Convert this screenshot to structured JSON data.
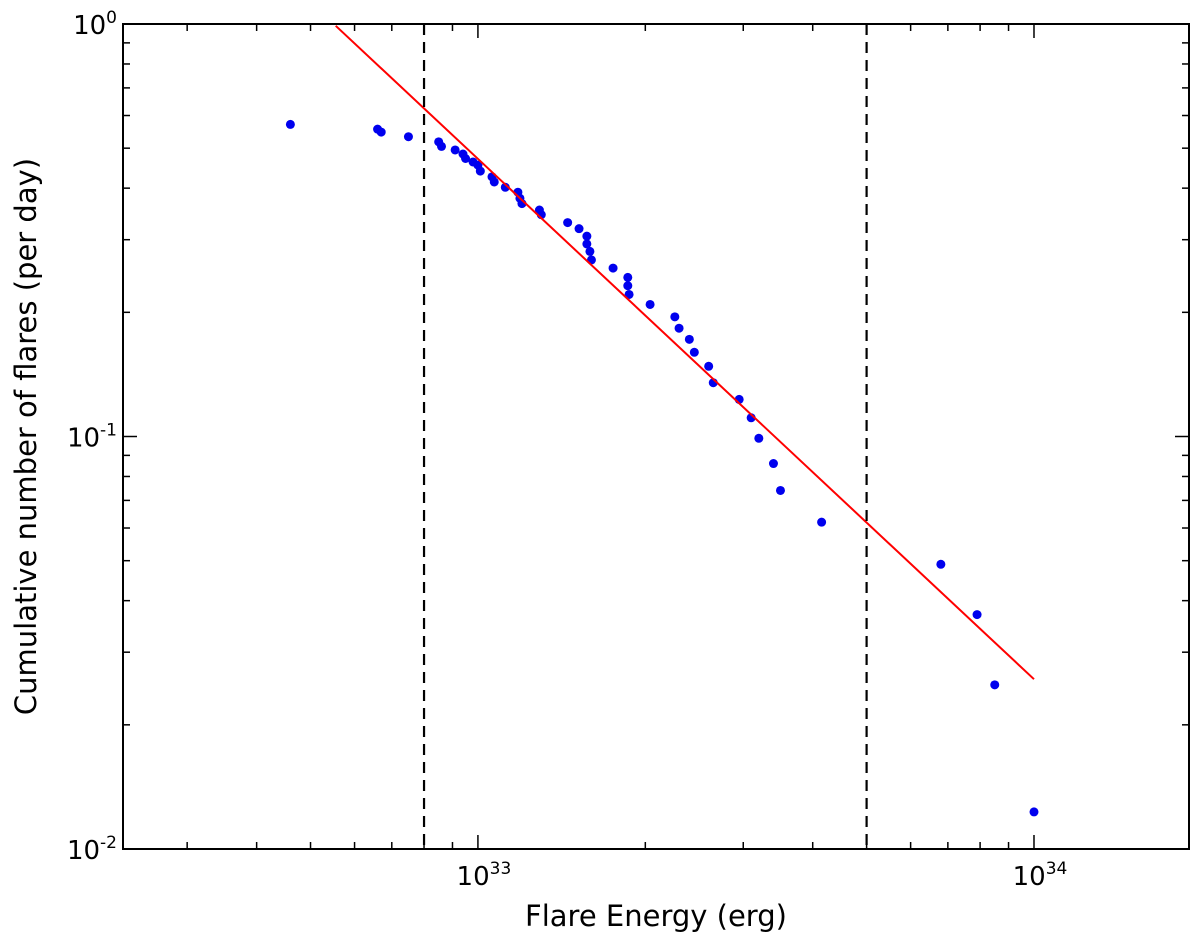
{
  "chart_data": {
    "type": "scatter",
    "title": "",
    "xlabel": "Flare Energy (erg)",
    "ylabel": "Cumulative number of flares (per day)",
    "x_scale": "log",
    "y_scale": "log",
    "xlim": [
      2.3e+32,
      1.9e+34
    ],
    "ylim": [
      0.01,
      1.0
    ],
    "x_ticks": [
      {
        "value": 1e+33,
        "base": "10",
        "exp": "33"
      },
      {
        "value": 1e+34,
        "base": "10",
        "exp": "34"
      }
    ],
    "y_ticks": [
      {
        "value": 1.0,
        "base": "10",
        "exp": "0"
      },
      {
        "value": 0.1,
        "base": "10",
        "exp": "-1"
      },
      {
        "value": 0.01,
        "base": "10",
        "exp": "-2"
      }
    ],
    "grid": false,
    "legend": false,
    "series": [
      {
        "kind": "scatter",
        "color": "#0000ee",
        "points": [
          [
            4.6e+32,
            0.571
          ],
          [
            6.6e+32,
            0.556
          ],
          [
            6.7e+32,
            0.547
          ],
          [
            7.5e+32,
            0.533
          ],
          [
            8.5e+32,
            0.518
          ],
          [
            8.6e+32,
            0.505
          ],
          [
            9.1e+32,
            0.495
          ],
          [
            9.4e+32,
            0.484
          ],
          [
            9.5e+32,
            0.472
          ],
          [
            9.8e+32,
            0.463
          ],
          [
            1e+33,
            0.455
          ],
          [
            1.01e+33,
            0.44
          ],
          [
            1.06e+33,
            0.426
          ],
          [
            1.07e+33,
            0.414
          ],
          [
            1.12e+33,
            0.402
          ],
          [
            1.18e+33,
            0.391
          ],
          [
            1.19e+33,
            0.378
          ],
          [
            1.2e+33,
            0.367
          ],
          [
            1.29e+33,
            0.354
          ],
          [
            1.3e+33,
            0.345
          ],
          [
            1.45e+33,
            0.33
          ],
          [
            1.52e+33,
            0.319
          ],
          [
            1.57e+33,
            0.306
          ],
          [
            1.57e+33,
            0.293
          ],
          [
            1.59e+33,
            0.281
          ],
          [
            1.6e+33,
            0.268
          ],
          [
            1.75e+33,
            0.256
          ],
          [
            1.86e+33,
            0.243
          ],
          [
            1.86e+33,
            0.232
          ],
          [
            1.87e+33,
            0.221
          ],
          [
            2.04e+33,
            0.209
          ],
          [
            2.26e+33,
            0.195
          ],
          [
            2.3e+33,
            0.183
          ],
          [
            2.4e+33,
            0.172
          ],
          [
            2.45e+33,
            0.16
          ],
          [
            2.6e+33,
            0.148
          ],
          [
            2.65e+33,
            0.135
          ],
          [
            2.95e+33,
            0.123
          ],
          [
            3.1e+33,
            0.111
          ],
          [
            3.2e+33,
            0.099
          ],
          [
            3.4e+33,
            0.086
          ],
          [
            3.5e+33,
            0.074
          ],
          [
            4.15e+33,
            0.062
          ],
          [
            6.8e+33,
            0.049
          ],
          [
            7.9e+33,
            0.037
          ],
          [
            8.5e+33,
            0.025
          ],
          [
            1e+34,
            0.0123
          ]
        ]
      },
      {
        "kind": "fit_line",
        "color": "#ff0000",
        "x": [
          5.55e+32,
          1e+34
        ],
        "y": [
          0.99,
          0.0258
        ]
      },
      {
        "kind": "vline",
        "color": "#000000",
        "style": "dashed",
        "x": [
          8e+32,
          5e+33
        ]
      }
    ]
  }
}
